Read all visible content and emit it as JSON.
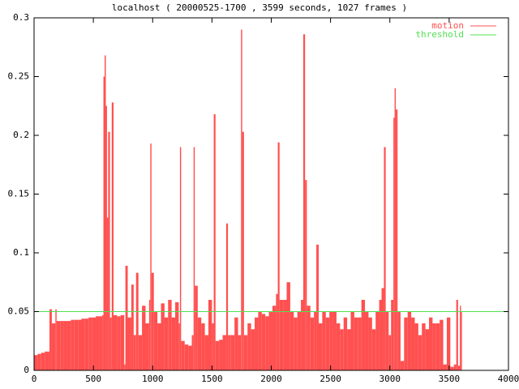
{
  "chart_data": {
    "type": "impulses",
    "title": "localhost ( 20000525-1700 , 3599 seconds, 1027 frames )",
    "xlim": [
      0,
      4000
    ],
    "xticks": [
      0,
      500,
      1000,
      1500,
      2000,
      2500,
      3000,
      3500,
      4000
    ],
    "ylim": [
      0,
      0.3
    ],
    "yticks": [
      0,
      0.05,
      0.1,
      0.15,
      0.2,
      0.25,
      0.3
    ],
    "legend": "upper right",
    "series": [
      {
        "name": "motion",
        "color": "#ff5050",
        "style": "impulses",
        "x": [
          0,
          30,
          60,
          90,
          120,
          130,
          150,
          180,
          190,
          220,
          250,
          280,
          310,
          340,
          370,
          400,
          430,
          460,
          490,
          520,
          550,
          575,
          585,
          595,
          605,
          615,
          625,
          640,
          655,
          670,
          700,
          730,
          760,
          770,
          790,
          820,
          840,
          860,
          880,
          910,
          940,
          970,
          980,
          990,
          1010,
          1040,
          1070,
          1100,
          1130,
          1160,
          1190,
          1220,
          1230,
          1240,
          1270,
          1300,
          1330,
          1345,
          1355,
          1380,
          1410,
          1440,
          1470,
          1500,
          1515,
          1530,
          1560,
          1590,
          1620,
          1635,
          1660,
          1690,
          1720,
          1745,
          1755,
          1770,
          1800,
          1830,
          1860,
          1890,
          1920,
          1950,
          1980,
          2010,
          2040,
          2055,
          2070,
          2100,
          2130,
          2160,
          2190,
          2220,
          2250,
          2270,
          2285,
          2300,
          2330,
          2360,
          2380,
          2400,
          2430,
          2460,
          2490,
          2520,
          2550,
          2580,
          2610,
          2640,
          2670,
          2700,
          2730,
          2760,
          2790,
          2820,
          2850,
          2880,
          2910,
          2930,
          2950,
          2965,
          2990,
          3010,
          3030,
          3040,
          3050,
          3065,
          3090,
          3120,
          3150,
          3180,
          3210,
          3240,
          3270,
          3300,
          3330,
          3360,
          3390,
          3420,
          3450,
          3480,
          3510,
          3540,
          3560,
          3575,
          3590,
          3599
        ],
        "values": [
          0.013,
          0.014,
          0.015,
          0.016,
          0.016,
          0.052,
          0.04,
          0.052,
          0.042,
          0.042,
          0.042,
          0.042,
          0.043,
          0.043,
          0.043,
          0.044,
          0.044,
          0.045,
          0.045,
          0.046,
          0.046,
          0.047,
          0.25,
          0.268,
          0.225,
          0.13,
          0.203,
          0.045,
          0.228,
          0.047,
          0.046,
          0.047,
          0.005,
          0.089,
          0.045,
          0.073,
          0.03,
          0.083,
          0.03,
          0.055,
          0.04,
          0.06,
          0.193,
          0.083,
          0.05,
          0.04,
          0.057,
          0.045,
          0.06,
          0.045,
          0.058,
          0.04,
          0.19,
          0.025,
          0.022,
          0.021,
          0.03,
          0.19,
          0.072,
          0.045,
          0.04,
          0.03,
          0.06,
          0.04,
          0.218,
          0.025,
          0.026,
          0.03,
          0.125,
          0.03,
          0.03,
          0.045,
          0.03,
          0.29,
          0.203,
          0.03,
          0.04,
          0.035,
          0.045,
          0.05,
          0.048,
          0.046,
          0.05,
          0.055,
          0.065,
          0.194,
          0.06,
          0.06,
          0.075,
          0.05,
          0.045,
          0.05,
          0.06,
          0.286,
          0.162,
          0.055,
          0.045,
          0.05,
          0.107,
          0.04,
          0.05,
          0.045,
          0.05,
          0.05,
          0.04,
          0.035,
          0.045,
          0.035,
          0.05,
          0.045,
          0.045,
          0.06,
          0.05,
          0.045,
          0.035,
          0.05,
          0.06,
          0.07,
          0.19,
          0.05,
          0.03,
          0.06,
          0.215,
          0.24,
          0.222,
          0.05,
          0.008,
          0.045,
          0.05,
          0.045,
          0.04,
          0.03,
          0.04,
          0.035,
          0.045,
          0.04,
          0.04,
          0.043,
          0.005,
          0.045,
          0.003,
          0.005,
          0.06,
          0.004,
          0.055,
          0.05
        ]
      },
      {
        "name": "threshold",
        "color": "#50e050",
        "style": "line",
        "x": [
          0,
          4000
        ],
        "values": [
          0.05,
          0.05
        ]
      }
    ]
  }
}
